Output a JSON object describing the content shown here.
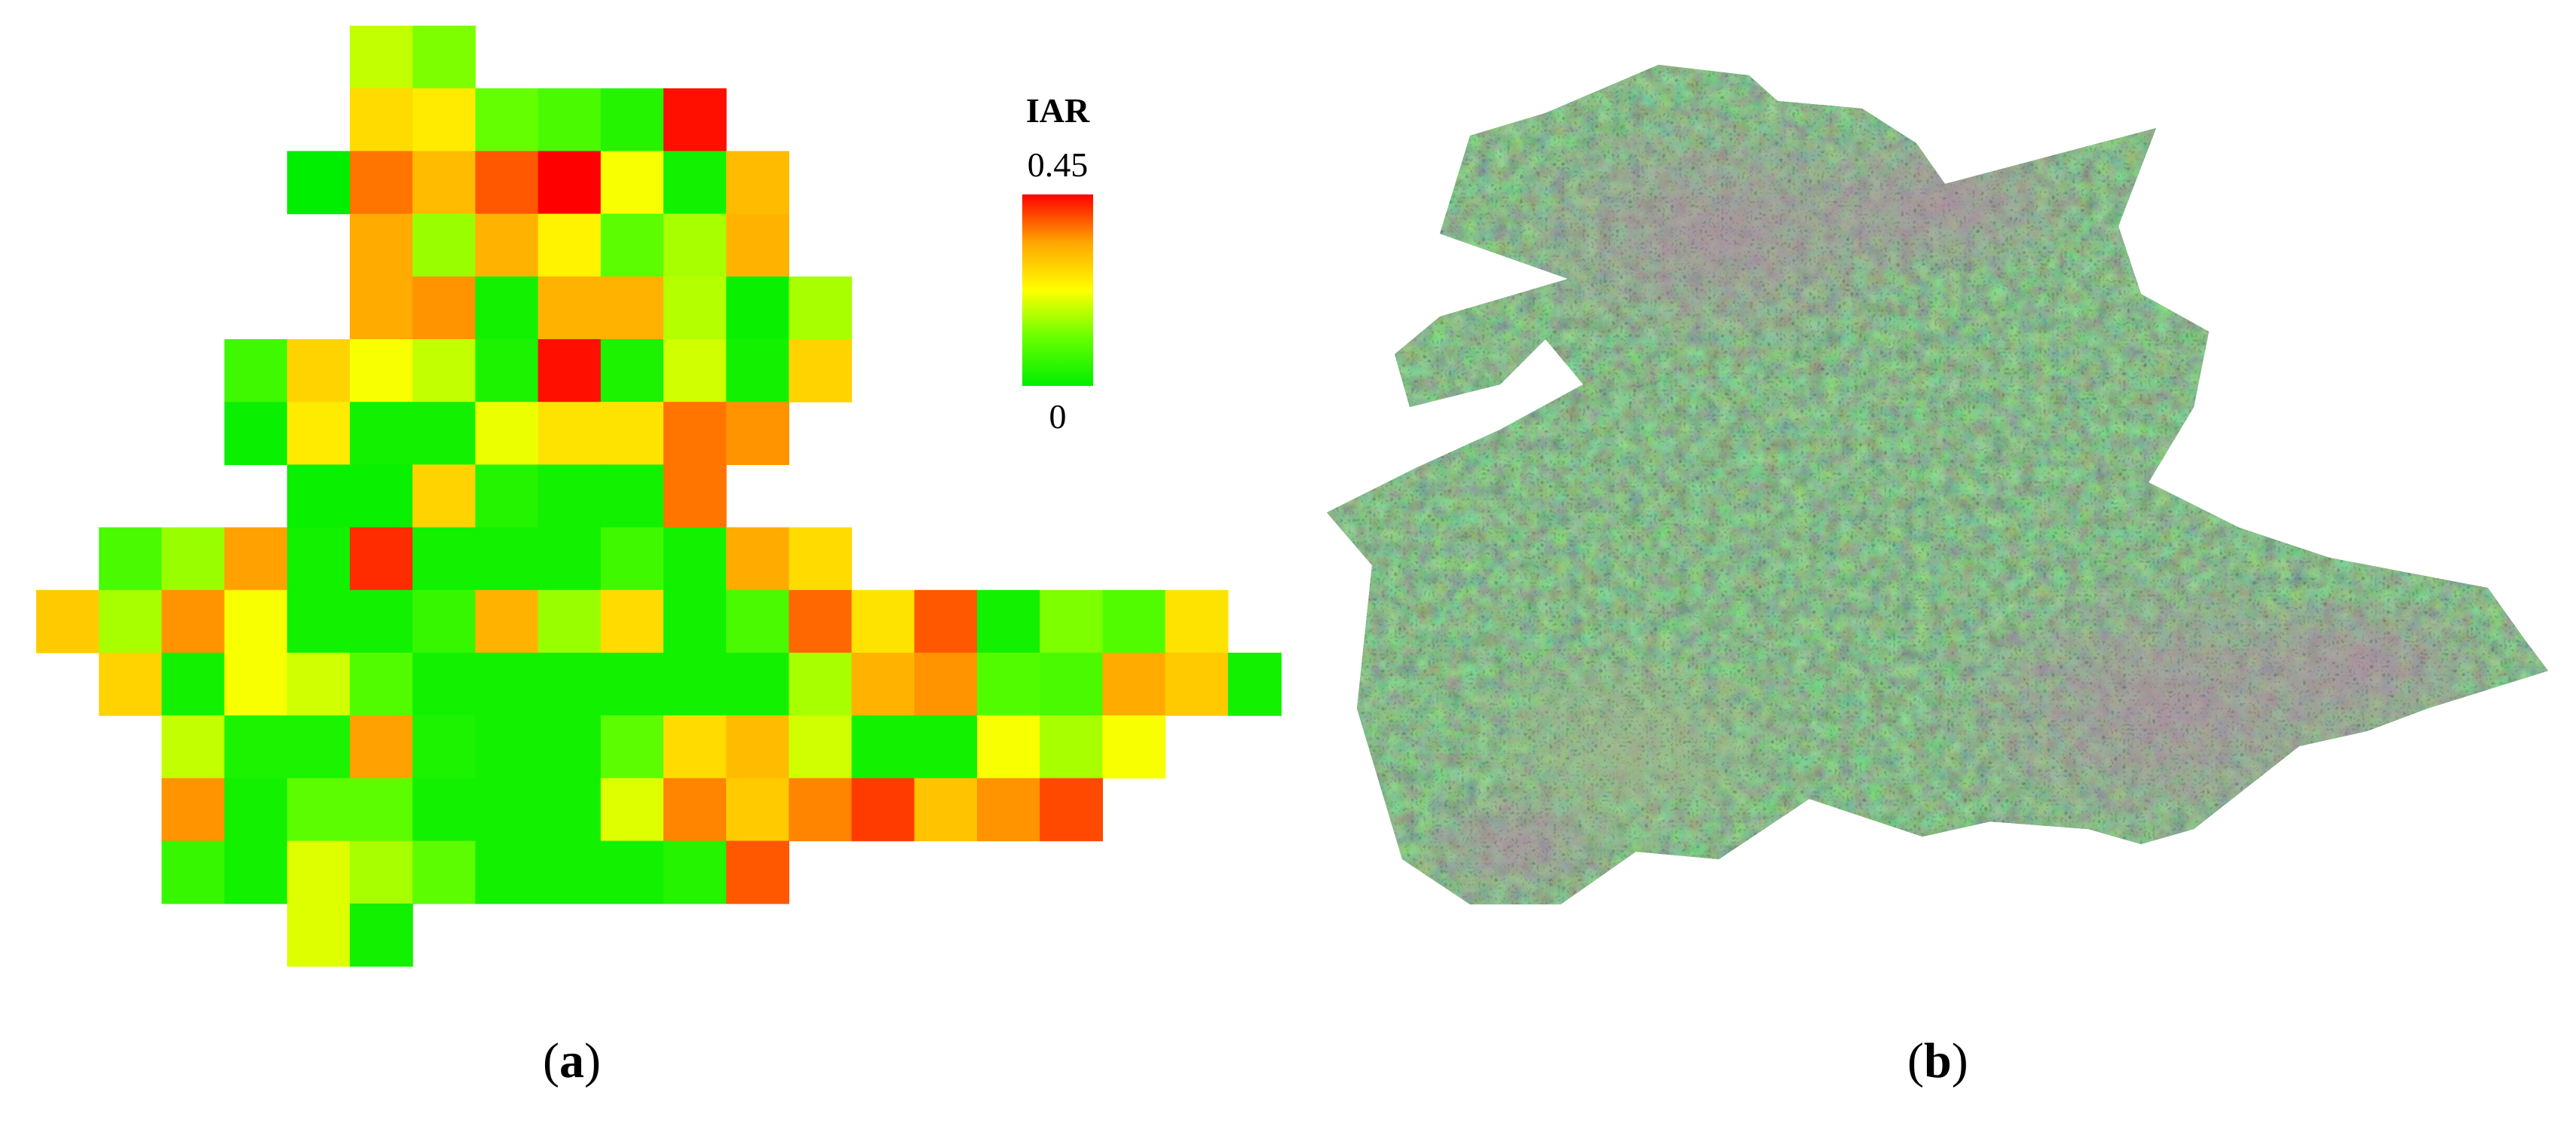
{
  "panel_a": {
    "legend": {
      "title": "IAR",
      "max_label": "0.45",
      "min_label": "0",
      "gradient_colors": [
        "#00ee00",
        "#66ff00",
        "#ffff00",
        "#ffa500",
        "#ff0000"
      ]
    },
    "caption": {
      "open": "(",
      "letter": "a",
      "close": ")"
    },
    "grid": {
      "value_min": 0,
      "value_max": 0.45,
      "first_column": 1,
      "rows": [
        [
          null,
          null,
          null,
          null,
          null,
          0.18,
          0.13
        ],
        [
          null,
          null,
          null,
          null,
          null,
          0.27,
          0.25,
          0.11,
          0.08,
          0.04,
          0.44
        ],
        [
          null,
          null,
          null,
          null,
          0.0,
          0.37,
          0.31,
          0.39,
          0.45,
          0.22,
          0.02,
          0.31
        ],
        [
          null,
          null,
          null,
          null,
          null,
          0.33,
          0.15,
          0.32,
          0.24,
          0.1,
          0.16,
          0.32
        ],
        [
          null,
          null,
          null,
          null,
          null,
          0.33,
          0.35,
          0.02,
          0.32,
          0.32,
          0.17,
          0.01,
          0.16
        ],
        [
          null,
          null,
          null,
          0.07,
          0.28,
          0.22,
          0.18,
          0.03,
          0.44,
          0.03,
          0.19,
          0.02,
          0.28
        ],
        [
          null,
          null,
          null,
          0.01,
          0.25,
          0.02,
          0.02,
          0.21,
          0.26,
          0.26,
          0.37,
          0.35
        ],
        [
          null,
          null,
          null,
          null,
          0.01,
          0.01,
          0.28,
          0.04,
          0.02,
          0.02,
          0.37
        ],
        [
          null,
          0.08,
          0.15,
          0.34,
          0.02,
          0.42,
          0.02,
          0.02,
          0.02,
          0.07,
          0.02,
          0.33,
          0.27
        ],
        [
          0.29,
          0.16,
          0.35,
          0.22,
          0.02,
          0.02,
          0.06,
          0.32,
          0.15,
          0.27,
          0.02,
          0.08,
          0.38,
          0.26,
          0.39,
          0.02,
          0.13,
          0.09,
          0.26
        ],
        [
          null,
          0.28,
          0.02,
          0.22,
          0.19,
          0.09,
          0.02,
          0.02,
          0.02,
          0.02,
          0.02,
          0.02,
          0.16,
          0.32,
          0.35,
          0.09,
          0.08,
          0.33,
          0.29,
          0.02
        ],
        [
          null,
          null,
          0.18,
          0.03,
          0.03,
          0.34,
          0.03,
          0.02,
          0.02,
          0.1,
          0.27,
          0.31,
          0.19,
          0.02,
          0.02,
          0.22,
          0.16,
          0.22
        ],
        [
          null,
          null,
          0.35,
          0.02,
          0.1,
          0.1,
          0.02,
          0.02,
          0.02,
          0.2,
          0.36,
          0.29,
          0.36,
          0.41,
          0.3,
          0.35,
          0.4
        ],
        [
          null,
          null,
          0.06,
          0.02,
          0.2,
          0.16,
          0.1,
          0.02,
          0.02,
          0.02,
          0.04,
          0.39
        ],
        [
          null,
          null,
          null,
          null,
          0.2,
          0.02
        ]
      ]
    }
  },
  "panel_b": {
    "caption": {
      "open": "(",
      "letter": "b",
      "close": ")"
    }
  }
}
